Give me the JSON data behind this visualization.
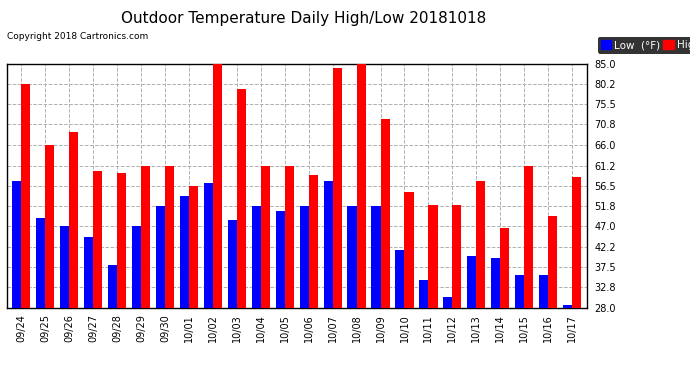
{
  "title": "Outdoor Temperature Daily High/Low 20181018",
  "copyright": "Copyright 2018 Cartronics.com",
  "legend_low": "Low  (°F)",
  "legend_high": "High  (°F)",
  "dates": [
    "09/24",
    "09/25",
    "09/26",
    "09/27",
    "09/28",
    "09/29",
    "09/30",
    "10/01",
    "10/02",
    "10/03",
    "10/04",
    "10/05",
    "10/06",
    "10/07",
    "10/08",
    "10/09",
    "10/10",
    "10/11",
    "10/12",
    "10/13",
    "10/14",
    "10/15",
    "10/16",
    "10/17"
  ],
  "high": [
    80.2,
    66.0,
    69.0,
    60.0,
    59.5,
    61.2,
    61.2,
    56.5,
    85.0,
    79.0,
    61.2,
    61.2,
    59.0,
    84.0,
    85.0,
    72.0,
    55.0,
    52.0,
    52.0,
    57.5,
    46.5,
    61.2,
    49.5,
    58.5
  ],
  "low": [
    57.5,
    49.0,
    47.0,
    44.5,
    38.0,
    47.0,
    51.8,
    54.0,
    57.0,
    48.5,
    51.8,
    50.5,
    51.8,
    57.5,
    51.8,
    51.8,
    41.5,
    34.5,
    30.5,
    40.0,
    39.5,
    35.5,
    35.5,
    28.5
  ],
  "ylim_min": 28.0,
  "ylim_max": 85.0,
  "yticks": [
    28.0,
    32.8,
    37.5,
    42.2,
    47.0,
    51.8,
    56.5,
    61.2,
    66.0,
    70.8,
    75.5,
    80.2,
    85.0
  ],
  "bar_width": 0.38,
  "high_color": "#ff0000",
  "low_color": "#0000ff",
  "bg_color": "#ffffff",
  "grid_color": "#b0b0b0",
  "title_fontsize": 11,
  "tick_fontsize": 7,
  "legend_fontsize": 7.5
}
